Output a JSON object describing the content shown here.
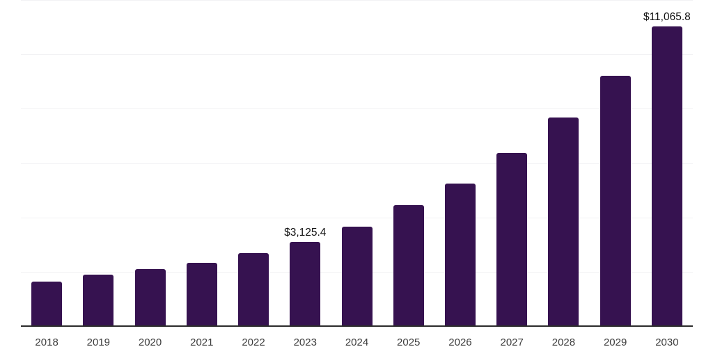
{
  "chart_data": {
    "type": "bar",
    "title": "",
    "xlabel": "",
    "ylabel": "",
    "categories": [
      "2018",
      "2019",
      "2020",
      "2021",
      "2022",
      "2023",
      "2024",
      "2025",
      "2026",
      "2027",
      "2028",
      "2029",
      "2030"
    ],
    "values": [
      1670,
      1930,
      2135,
      2365,
      2700,
      3125.4,
      3680,
      4475,
      5270,
      6400,
      7690,
      9230,
      11065.8
    ],
    "value_labels": [
      {
        "category": "2023",
        "text": "$3,125.4"
      },
      {
        "category": "2030",
        "text": "$11,065.8"
      }
    ],
    "ylim": [
      0,
      12000
    ],
    "gridline_step": 2000,
    "grid": "horizontal-only",
    "legend_position": "none",
    "y_axis_labels_visible": false,
    "bar_color": "#361250"
  },
  "colors": {
    "background": "#ffffff",
    "bar": "#361250",
    "gridline": "#f2f2f4",
    "axis_line": "#2b2b2b",
    "tick_label": "#3c3c3c",
    "value_label": "#101010"
  }
}
